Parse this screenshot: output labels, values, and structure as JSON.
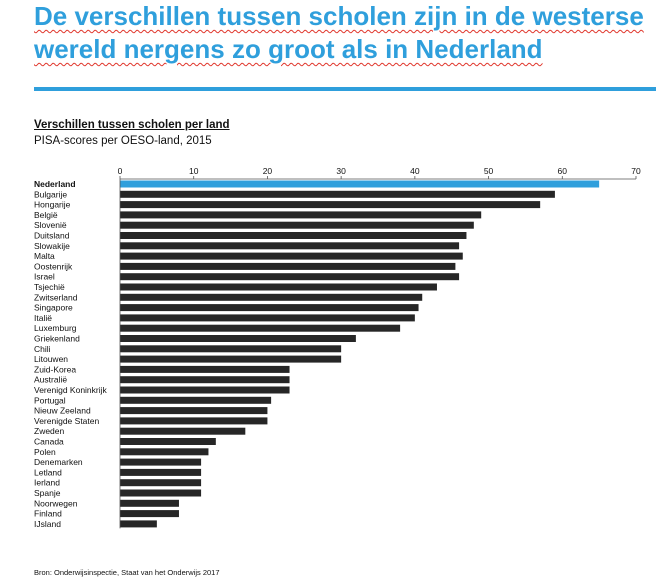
{
  "headline": "De verschillen tussen scholen zijn in de westerse wereld nergens zo groot als in Nederland",
  "footer": {
    "source": "Bron: Onderwijsinspectie, Staat van het Onderwijs 2017"
  },
  "colors": {
    "accent": "#2f9fdc",
    "bar": "#262626",
    "highlight_bar": "#2f9fdc",
    "highlight_label": "#2f9fdc"
  },
  "chart_data": {
    "type": "bar",
    "orientation": "horizontal",
    "title": "Verschillen tussen scholen per land",
    "subtitle": "PISA-scores per OESO-land, 2015",
    "xlim": [
      0,
      70
    ],
    "xticks": [
      0,
      10,
      20,
      30,
      40,
      50,
      60,
      70
    ],
    "x_axis_position": "top",
    "grid": false,
    "highlight": "Nederland",
    "categories": [
      "Nederland",
      "Bulgarije",
      "Hongarije",
      "België",
      "Slovenië",
      "Duitsland",
      "Slowakije",
      "Malta",
      "Oostenrijk",
      "Israel",
      "Tsjechië",
      "Zwitserland",
      "Singapore",
      "Italië",
      "Luxemburg",
      "Griekenland",
      "Chili",
      "Litouwen",
      "Zuid-Korea",
      "Australië",
      "Verenigd Koninkrijk",
      "Portugal",
      "Nieuw Zeeland",
      "Verenigde Staten",
      "Zweden",
      "Canada",
      "Polen",
      "Denemarken",
      "Letland",
      "Ierland",
      "Spanje",
      "Noorwegen",
      "Finland",
      "IJsland"
    ],
    "values": [
      65,
      59,
      57,
      49,
      48,
      47,
      46,
      46.5,
      45.5,
      46,
      43,
      41,
      40.5,
      40,
      38,
      32,
      30,
      30,
      23,
      23,
      23,
      20.5,
      20,
      20,
      17,
      13,
      12,
      11,
      11,
      11,
      11,
      8,
      8,
      5
    ]
  }
}
